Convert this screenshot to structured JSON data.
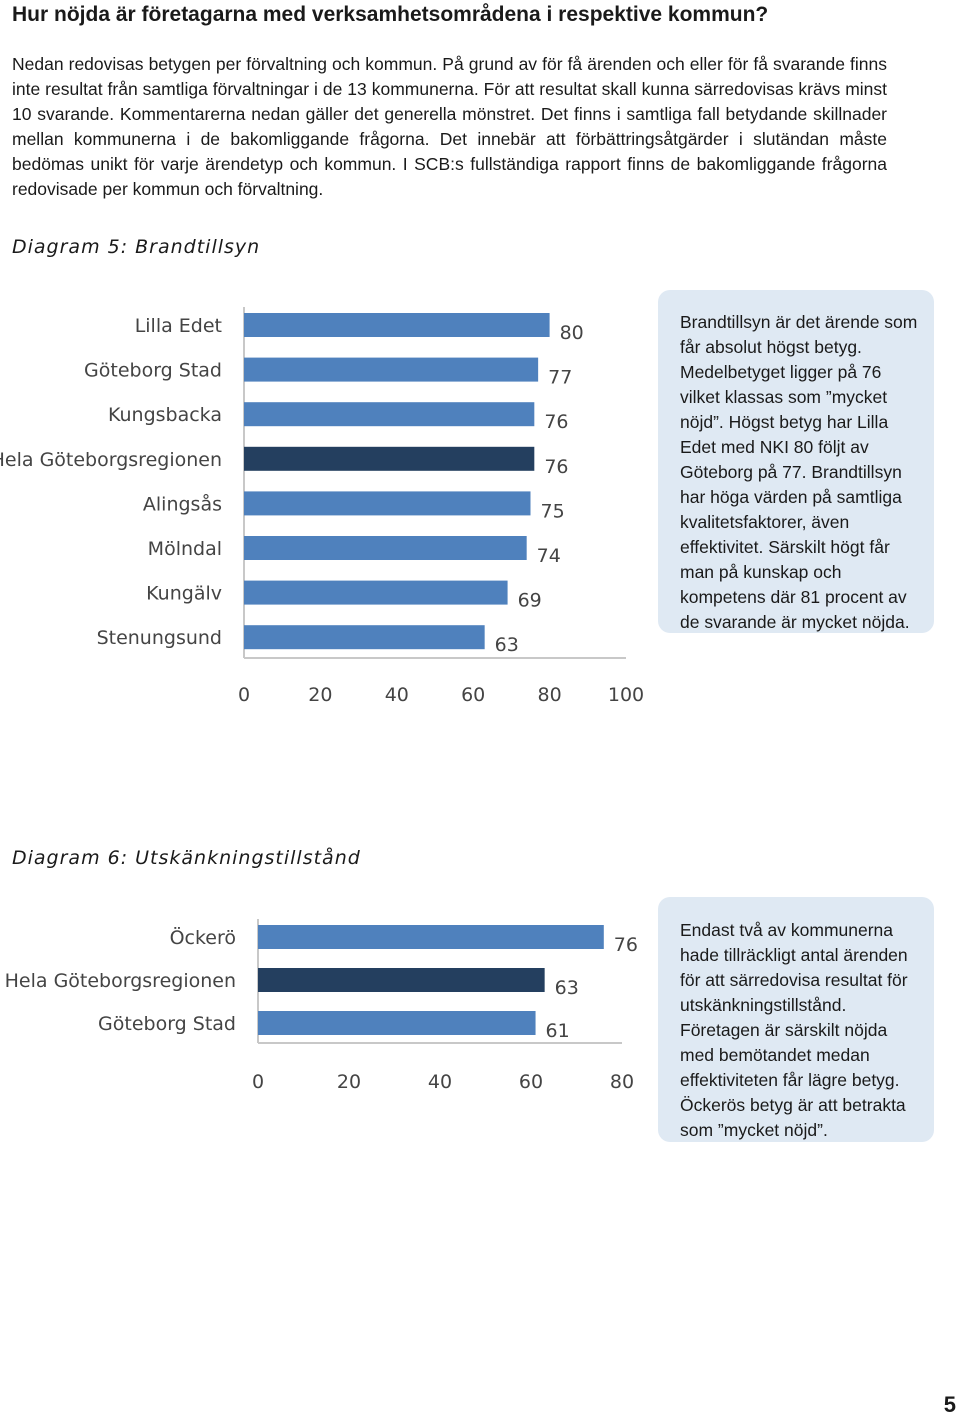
{
  "heading": "Hur nöjda är företagarna med verksamhetsområdena i respektive kommun?",
  "intro": "Nedan redovisas betygen per förvaltning och kommun. På grund av för få ärenden och eller för få svarande finns inte resultat från samtliga förvaltningar i de 13 kommunerna. För att resultat skall kunna särredovisas krävs minst 10 svarande. Kommentarerna nedan gäller det generella mönstret. Det finns i samtliga fall betydande skillnader mellan kommunerna i de bakomliggande frågorna. Det innebär att förbättringsåtgärder i slutändan måste bedömas unikt för varje ärendetyp och kommun. I SCB:s fullständiga rapport finns de bakomliggande frågorna redovisade per kommun och förvaltning.",
  "diagram5": {
    "title": "Diagram 5: Brandtillsyn",
    "box_text": "Brandtillsyn är det ärende som får absolut högst betyg. Medelbetyget ligger på 76 vilket klassas som ”mycket nöjd”. Högst betyg har Lilla Edet med NKI 80 följt av Göteborg på 77. Brandtillsyn har höga värden på samtliga kvalitetsfaktorer, även effektivitet. Särskilt högt får man på kunskap och kompetens där 81 procent av de svarande är mycket nöjda."
  },
  "diagram6": {
    "title": "Diagram 6: Utskänkningstillstånd",
    "box_text": "Endast två av kommunerna hade tillräckligt antal ärenden för att särredovisa resultat för utskänkningstillstånd. Företagen är särskilt nöjda med bemötandet medan effektiviteten får lägre betyg. Öckerös betyg är att betrakta som ”mycket nöjd”."
  },
  "page_number": "5",
  "colors": {
    "bar": "#4f81bd",
    "highlight": "#243f5f",
    "box_bg": "#dfe9f3"
  },
  "chart_data": [
    {
      "type": "bar",
      "orientation": "horizontal",
      "title": "Diagram 5: Brandtillsyn",
      "categories": [
        "Lilla Edet",
        "Göteborg Stad",
        "Kungsbacka",
        "Hela Göteborgsregionen",
        "Alingsås",
        "Mölndal",
        "Kungälv",
        "Stenungsund"
      ],
      "values": [
        80,
        77,
        76,
        76,
        75,
        74,
        69,
        63
      ],
      "highlight": [
        "Hela Göteborgsregionen"
      ],
      "xlim": [
        0,
        100
      ],
      "xticks": [
        0,
        20,
        40,
        60,
        80,
        100
      ],
      "grid": false,
      "xlabel": "",
      "ylabel": ""
    },
    {
      "type": "bar",
      "orientation": "horizontal",
      "title": "Diagram 6: Utskänkningstillstånd",
      "categories": [
        "Öckerö",
        "Hela Göteborgsregionen",
        "Göteborg Stad"
      ],
      "values": [
        76,
        63,
        61
      ],
      "highlight": [
        "Hela Göteborgsregionen"
      ],
      "xlim": [
        0,
        80
      ],
      "xticks": [
        0,
        20,
        40,
        60,
        80
      ],
      "grid": false,
      "xlabel": "",
      "ylabel": ""
    }
  ]
}
